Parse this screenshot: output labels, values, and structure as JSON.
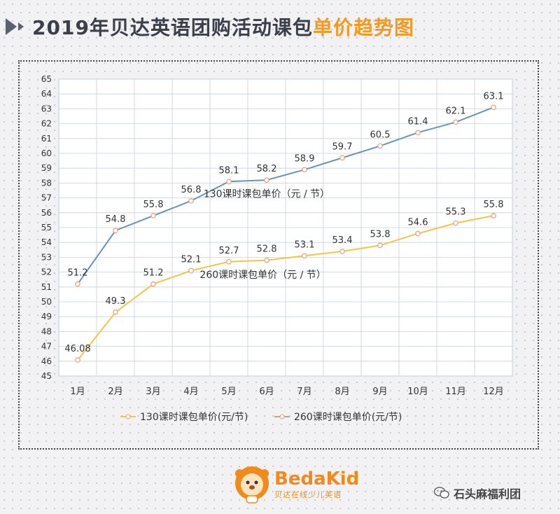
{
  "title": {
    "main": "2019年贝达英语团购活动课包",
    "accent": "单价趋势图"
  },
  "chart_data": {
    "type": "line",
    "categories": [
      "1月",
      "2月",
      "3月",
      "4月",
      "5月",
      "6月",
      "7月",
      "8月",
      "9月",
      "10月",
      "11月",
      "12月"
    ],
    "ylim": [
      45,
      65
    ],
    "yticks": [
      45,
      46,
      47,
      48,
      49,
      50,
      51,
      52,
      53,
      54,
      55,
      56,
      57,
      58,
      59,
      60,
      61,
      62,
      63,
      64,
      65
    ],
    "grid": true,
    "legend_position": "bottom",
    "series": [
      {
        "name": "130课时课包单价(元/节)",
        "values": [
          51.2,
          54.8,
          55.8,
          56.8,
          58.1,
          58.2,
          58.9,
          59.7,
          60.5,
          61.4,
          62.1,
          63.1
        ],
        "labels": [
          "51.2",
          "54.8",
          "55.8",
          "56.8",
          "58.1",
          "58.2",
          "58.9",
          "59.7",
          "60.5",
          "61.4",
          "62.1",
          "63.1"
        ],
        "color": "#6a93b6",
        "annotation": "130课时课包单价（元 / 节）",
        "annotation_at": 5.5,
        "annotation_value": 57.05
      },
      {
        "name": "260课时课包单价(元/节)",
        "values": [
          46.08,
          49.3,
          51.2,
          52.1,
          52.7,
          52.8,
          53.1,
          53.4,
          53.8,
          54.6,
          55.3,
          55.8
        ],
        "labels": [
          "46.08",
          "49.3",
          "51.2",
          "52.1",
          "52.7",
          "52.8",
          "53.1",
          "53.4",
          "53.8",
          "54.6",
          "55.3",
          "55.8"
        ],
        "color": "#f5c542",
        "annotation": "260课时课包单价（元 / 节）",
        "annotation_at": 5.4,
        "annotation_value": 51.6
      }
    ],
    "legend": [
      {
        "label": "130课时课包单价(元/节)",
        "color": "#f5c542"
      },
      {
        "label": "260课时课包单价(元/节)",
        "color": "#c9a47a"
      }
    ],
    "marker_color": "#e8a07a"
  },
  "footer": {
    "brand_name": "BedaKid",
    "brand_sub": "贝达在线少儿英语",
    "wechat_name": "石头麻福利团"
  },
  "colors": {
    "title_text": "#3a3f4a",
    "title_accent": "#f29a1f",
    "brand": "#f28a1a"
  }
}
